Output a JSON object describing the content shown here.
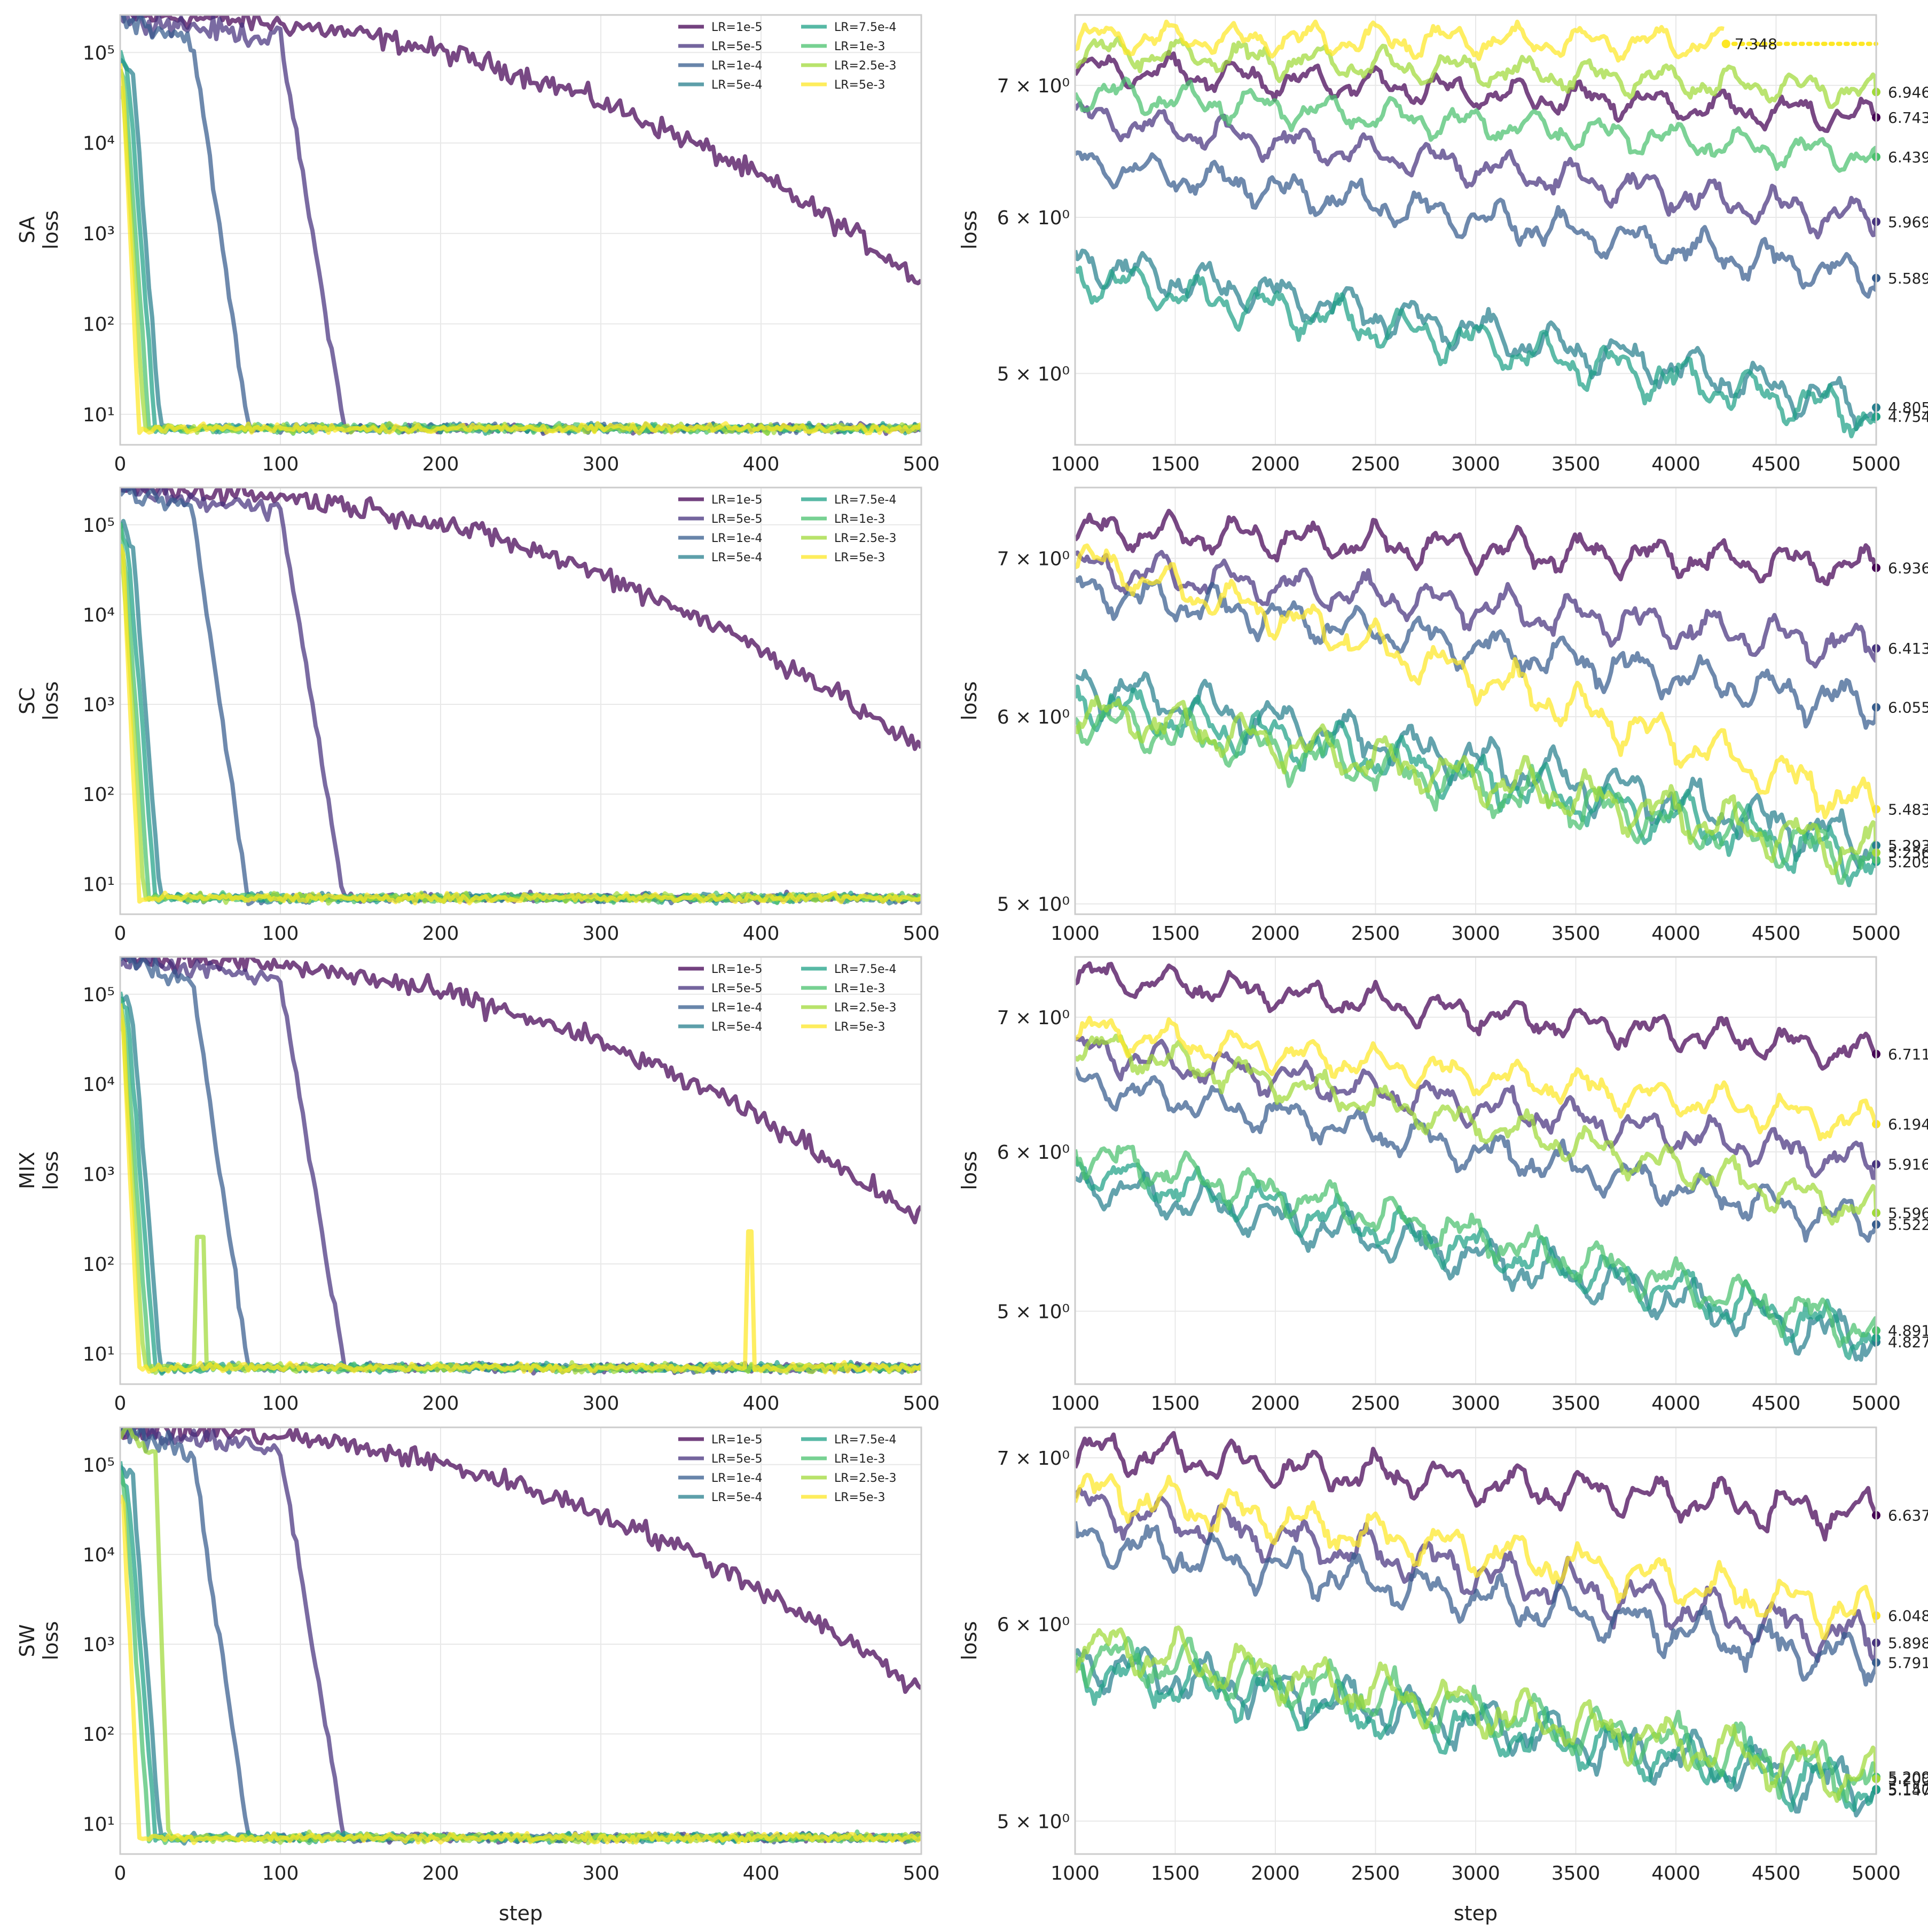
{
  "figure": {
    "xlabel_bottom": "step",
    "rows": [
      "SA",
      "SC",
      "MIX",
      "SW"
    ],
    "ylabel": "loss"
  },
  "legend": [
    {
      "label": "LR=1e-5",
      "color": "#440154"
    },
    {
      "label": "LR=5e-5",
      "color": "#46327e"
    },
    {
      "label": "LR=1e-4",
      "color": "#365c8d"
    },
    {
      "label": "LR=5e-4",
      "color": "#277f8e"
    },
    {
      "label": "LR=7.5e-4",
      "color": "#1fa187"
    },
    {
      "label": "LR=1e-3",
      "color": "#4ac16d"
    },
    {
      "label": "LR=2.5e-3",
      "color": "#a0da39"
    },
    {
      "label": "LR=5e-3",
      "color": "#fde725"
    }
  ],
  "chart_data": [
    {
      "type": "line",
      "panel": "left",
      "row_label": "SA",
      "ylabel": "loss",
      "xlabel": "",
      "yscale": "log",
      "xlim": [
        0,
        500
      ],
      "ylim": [
        4.6,
        260000
      ],
      "xticks": [
        0,
        100,
        200,
        300,
        400,
        500
      ],
      "yticks": [
        {
          "v": 10,
          "label": "10¹"
        },
        {
          "v": 100,
          "label": "10²"
        },
        {
          "v": 1000,
          "label": "10³"
        },
        {
          "v": 10000,
          "label": "10⁴"
        },
        {
          "v": 100000,
          "label": "10⁵"
        }
      ],
      "series": [
        {
          "name": "LR=1e-5",
          "start": 250000,
          "mid_step": 230,
          "end": 300
        },
        {
          "name": "LR=5e-5",
          "start": 250000,
          "drop_start": 100,
          "drop_end": 140
        },
        {
          "name": "LR=1e-4",
          "start": 250000,
          "drop_start": 45,
          "drop_end": 80
        },
        {
          "name": "LR=5e-4",
          "start": 100000,
          "drop_start": 8,
          "drop_end": 25
        },
        {
          "name": "LR=7.5e-4",
          "start": 100000,
          "drop_start": 5,
          "drop_end": 22
        },
        {
          "name": "LR=1e-3",
          "start": 80000,
          "drop_start": 3,
          "drop_end": 18
        },
        {
          "name": "LR=2.5e-3",
          "start": 60000,
          "drop_start": 2,
          "drop_end": 15
        },
        {
          "name": "LR=5e-3",
          "start": 60000,
          "drop_start": 2,
          "drop_end": 12
        }
      ],
      "final_loss": 7
    },
    {
      "type": "line",
      "panel": "right",
      "row_label": "SA",
      "ylabel": "loss",
      "xlabel": "",
      "yscale": "log",
      "xlim": [
        1000,
        5000
      ],
      "ylim": [
        4.6,
        7.6
      ],
      "xticks": [
        1000,
        1500,
        2000,
        2500,
        3000,
        3500,
        4000,
        4500,
        5000
      ],
      "yticks": [
        {
          "v": 5,
          "label": "5 × 10⁰"
        },
        {
          "v": 6,
          "label": "6 × 10⁰"
        },
        {
          "v": 7,
          "label": "7 × 10⁰"
        }
      ],
      "series": [
        {
          "name": "LR=1e-5",
          "start": 7.15,
          "end": 6.743,
          "label": "6.743"
        },
        {
          "name": "LR=5e-5",
          "start": 6.75,
          "end": 5.969,
          "label": "5.969"
        },
        {
          "name": "LR=1e-4",
          "start": 6.4,
          "end": 5.589,
          "label": "5.589"
        },
        {
          "name": "LR=5e-4",
          "start": 5.7,
          "end": 4.805,
          "label": "4.805"
        },
        {
          "name": "LR=7.5e-4",
          "start": 5.6,
          "end": 4.754,
          "label": "4.754"
        },
        {
          "name": "LR=1e-3",
          "start": 6.95,
          "end": 6.439,
          "label": "6.439"
        },
        {
          "name": "LR=2.5e-3",
          "start": 7.3,
          "end": 6.946,
          "label": "6.946"
        },
        {
          "name": "LR=5e-3",
          "start": 7.4,
          "end": 7.348,
          "label": "7.348",
          "clip_after": 4250
        }
      ]
    },
    {
      "type": "line",
      "panel": "left",
      "row_label": "SC",
      "ylabel": "loss",
      "xlabel": "",
      "yscale": "log",
      "xlim": [
        0,
        500
      ],
      "ylim": [
        4.6,
        260000
      ],
      "xticks": [
        0,
        100,
        200,
        300,
        400,
        500
      ],
      "yticks": [
        {
          "v": 10,
          "label": "10¹"
        },
        {
          "v": 100,
          "label": "10²"
        },
        {
          "v": 1000,
          "label": "10³"
        },
        {
          "v": 10000,
          "label": "10⁴"
        },
        {
          "v": 100000,
          "label": "10⁵"
        }
      ],
      "series": [
        {
          "name": "LR=1e-5",
          "start": 250000,
          "mid_step": 230,
          "end": 300
        },
        {
          "name": "LR=5e-5",
          "start": 250000,
          "drop_start": 100,
          "drop_end": 140
        },
        {
          "name": "LR=1e-4",
          "start": 250000,
          "drop_start": 45,
          "drop_end": 80
        },
        {
          "name": "LR=5e-4",
          "start": 100000,
          "drop_start": 8,
          "drop_end": 25
        },
        {
          "name": "LR=7.5e-4",
          "start": 100000,
          "drop_start": 5,
          "drop_end": 22
        },
        {
          "name": "LR=1e-3",
          "start": 80000,
          "drop_start": 3,
          "drop_end": 18
        },
        {
          "name": "LR=2.5e-3",
          "start": 60000,
          "drop_start": 2,
          "drop_end": 15
        },
        {
          "name": "LR=5e-3",
          "start": 60000,
          "drop_start": 2,
          "drop_end": 12
        }
      ],
      "final_loss": 7
    },
    {
      "type": "line",
      "panel": "right",
      "row_label": "SC",
      "ylabel": "loss",
      "xlabel": "",
      "yscale": "log",
      "xlim": [
        1000,
        5000
      ],
      "ylim": [
        4.95,
        7.5
      ],
      "xticks": [
        1000,
        1500,
        2000,
        2500,
        3000,
        3500,
        4000,
        4500,
        5000
      ],
      "yticks": [
        {
          "v": 5,
          "label": "5 × 10⁰"
        },
        {
          "v": 6,
          "label": "6 × 10⁰"
        },
        {
          "v": 7,
          "label": "7 × 10⁰"
        }
      ],
      "series": [
        {
          "name": "LR=1e-5",
          "start": 7.2,
          "end": 6.936,
          "label": "6.936"
        },
        {
          "name": "LR=5e-5",
          "start": 6.95,
          "end": 6.413,
          "label": "6.413"
        },
        {
          "name": "LR=1e-4",
          "start": 6.8,
          "end": 6.055,
          "label": "6.055"
        },
        {
          "name": "LR=5e-4",
          "start": 6.2,
          "end": 5.293,
          "label": "5.293"
        },
        {
          "name": "LR=7.5e-4",
          "start": 6.1,
          "end": 5.209,
          "label": "5.209"
        },
        {
          "name": "LR=1e-3",
          "start": 6.0,
          "end": 5.22,
          "label": ""
        },
        {
          "name": "LR=2.5e-3",
          "start": 6.05,
          "end": 5.256,
          "label": "5.256"
        },
        {
          "name": "LR=5e-3",
          "start": 7.0,
          "end": 5.483,
          "label": "5.483"
        }
      ]
    },
    {
      "type": "line",
      "panel": "left",
      "row_label": "MIX",
      "ylabel": "loss",
      "xlabel": "",
      "yscale": "log",
      "xlim": [
        0,
        500
      ],
      "ylim": [
        4.6,
        260000
      ],
      "xticks": [
        0,
        100,
        200,
        300,
        400,
        500
      ],
      "yticks": [
        {
          "v": 10,
          "label": "10¹"
        },
        {
          "v": 100,
          "label": "10²"
        },
        {
          "v": 1000,
          "label": "10³"
        },
        {
          "v": 10000,
          "label": "10⁴"
        },
        {
          "v": 100000,
          "label": "10⁵"
        }
      ],
      "series": [
        {
          "name": "LR=1e-5",
          "start": 250000,
          "mid_step": 230,
          "end": 300
        },
        {
          "name": "LR=5e-5",
          "start": 250000,
          "drop_start": 100,
          "drop_end": 140
        },
        {
          "name": "LR=1e-4",
          "start": 250000,
          "drop_start": 45,
          "drop_end": 80
        },
        {
          "name": "LR=5e-4",
          "start": 100000,
          "drop_start": 8,
          "drop_end": 25
        },
        {
          "name": "LR=7.5e-4",
          "start": 100000,
          "drop_start": 5,
          "drop_end": 22
        },
        {
          "name": "LR=1e-3",
          "start": 80000,
          "drop_start": 3,
          "drop_end": 18
        },
        {
          "name": "LR=2.5e-3",
          "start": 60000,
          "drop_start": 2,
          "drop_end": 15,
          "spike_step": 50,
          "spike_value": 200
        },
        {
          "name": "LR=5e-3",
          "start": 60000,
          "drop_start": 2,
          "drop_end": 12,
          "spike_step": 393,
          "spike_value": 230
        }
      ],
      "final_loss": 7
    },
    {
      "type": "line",
      "panel": "right",
      "row_label": "MIX",
      "ylabel": "loss",
      "xlabel": "",
      "yscale": "log",
      "xlim": [
        1000,
        5000
      ],
      "ylim": [
        4.6,
        7.5
      ],
      "xticks": [
        1000,
        1500,
        2000,
        2500,
        3000,
        3500,
        4000,
        4500,
        5000
      ],
      "yticks": [
        {
          "v": 5,
          "label": "5 × 10⁰"
        },
        {
          "v": 6,
          "label": "6 × 10⁰"
        },
        {
          "v": 7,
          "label": "7 × 10⁰"
        }
      ],
      "series": [
        {
          "name": "LR=1e-5",
          "start": 7.35,
          "end": 6.711,
          "label": "6.711"
        },
        {
          "name": "LR=5e-5",
          "start": 6.75,
          "end": 5.916,
          "label": "5.916"
        },
        {
          "name": "LR=1e-4",
          "start": 6.5,
          "end": 5.522,
          "label": "5.522"
        },
        {
          "name": "LR=5e-4",
          "start": 5.8,
          "end": 4.827,
          "label": "4.827"
        },
        {
          "name": "LR=7.5e-4",
          "start": 5.9,
          "end": 4.85,
          "label": ""
        },
        {
          "name": "LR=1e-3",
          "start": 6.0,
          "end": 4.891,
          "label": "4.891"
        },
        {
          "name": "LR=2.5e-3",
          "start": 6.8,
          "end": 5.596,
          "label": "5.596"
        },
        {
          "name": "LR=5e-3",
          "start": 6.9,
          "end": 6.194,
          "label": "6.194"
        }
      ]
    },
    {
      "type": "line",
      "panel": "left",
      "row_label": "SW",
      "ylabel": "loss",
      "xlabel": "step",
      "yscale": "log",
      "xlim": [
        0,
        500
      ],
      "ylim": [
        4.6,
        260000
      ],
      "xticks": [
        0,
        100,
        200,
        300,
        400,
        500
      ],
      "yticks": [
        {
          "v": 10,
          "label": "10¹"
        },
        {
          "v": 100,
          "label": "10²"
        },
        {
          "v": 1000,
          "label": "10³"
        },
        {
          "v": 10000,
          "label": "10⁴"
        },
        {
          "v": 100000,
          "label": "10⁵"
        }
      ],
      "series": [
        {
          "name": "LR=1e-5",
          "start": 250000,
          "mid_step": 230,
          "end": 300
        },
        {
          "name": "LR=5e-5",
          "start": 250000,
          "drop_start": 100,
          "drop_end": 140
        },
        {
          "name": "LR=1e-4",
          "start": 250000,
          "drop_start": 45,
          "drop_end": 80
        },
        {
          "name": "LR=5e-4",
          "start": 100000,
          "drop_start": 8,
          "drop_end": 25
        },
        {
          "name": "LR=7.5e-4",
          "start": 100000,
          "drop_start": 5,
          "drop_end": 22
        },
        {
          "name": "LR=1e-3",
          "start": 80000,
          "drop_start": 3,
          "drop_end": 18
        },
        {
          "name": "LR=2.5e-3",
          "start": 250000,
          "drop_start": 22,
          "drop_end": 30
        },
        {
          "name": "LR=5e-3",
          "start": 60000,
          "drop_start": 2,
          "drop_end": 12
        }
      ],
      "final_loss": 7
    },
    {
      "type": "line",
      "panel": "right",
      "row_label": "SW",
      "ylabel": "loss",
      "xlabel": "step",
      "yscale": "log",
      "xlim": [
        1000,
        5000
      ],
      "ylim": [
        4.85,
        7.2
      ],
      "xticks": [
        1000,
        1500,
        2000,
        2500,
        3000,
        3500,
        4000,
        4500,
        5000
      ],
      "yticks": [
        {
          "v": 5,
          "label": "5 × 10⁰"
        },
        {
          "v": 6,
          "label": "6 × 10⁰"
        },
        {
          "v": 7,
          "label": "7 × 10⁰"
        }
      ],
      "series": [
        {
          "name": "LR=1e-5",
          "start": 7.05,
          "end": 6.637,
          "label": "6.637"
        },
        {
          "name": "LR=5e-5",
          "start": 6.7,
          "end": 5.898,
          "label": "5.898"
        },
        {
          "name": "LR=1e-4",
          "start": 6.5,
          "end": 5.791,
          "label": "5.791"
        },
        {
          "name": "LR=5e-4",
          "start": 5.8,
          "end": 5.147,
          "label": "5.147"
        },
        {
          "name": "LR=7.5e-4",
          "start": 5.75,
          "end": 5.15,
          "label": "5.150"
        },
        {
          "name": "LR=1e-3",
          "start": 5.85,
          "end": 5.209,
          "label": "5.209"
        },
        {
          "name": "LR=2.5e-3",
          "start": 5.9,
          "end": 5.2,
          "label": "5.200"
        },
        {
          "name": "LR=5e-3",
          "start": 6.8,
          "end": 6.048,
          "label": "6.048"
        }
      ]
    }
  ]
}
